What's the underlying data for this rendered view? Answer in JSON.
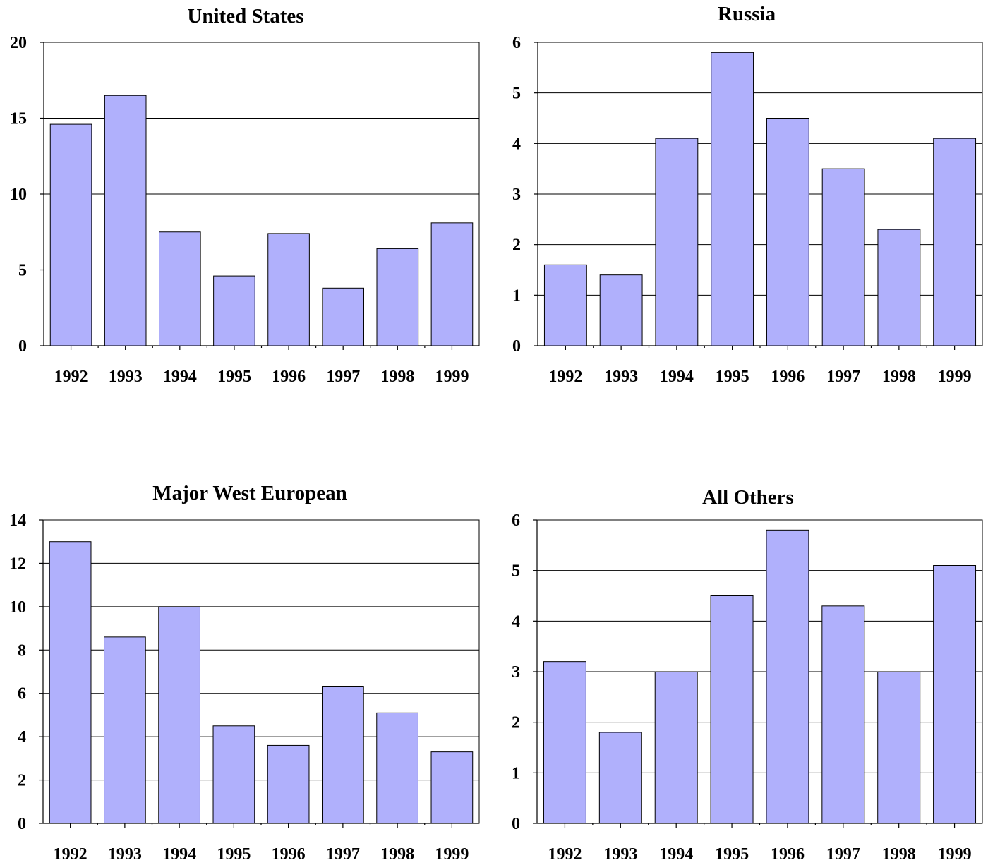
{
  "colors": {
    "bar_fill": "#b0b0fc",
    "line": "#000000",
    "background": "#ffffff"
  },
  "chart_data": [
    {
      "type": "bar",
      "title": "United States",
      "xlabel": "",
      "ylabel": "",
      "categories": [
        "1992",
        "1993",
        "1994",
        "1995",
        "1996",
        "1997",
        "1998",
        "1999"
      ],
      "values": [
        14.6,
        16.5,
        7.5,
        4.6,
        7.4,
        3.8,
        6.4,
        8.1
      ],
      "ylim": [
        0,
        20
      ],
      "yticks": [
        0,
        5,
        10,
        15,
        20
      ],
      "grid": true,
      "legend": "none"
    },
    {
      "type": "bar",
      "title": "Russia",
      "xlabel": "",
      "ylabel": "",
      "categories": [
        "1992",
        "1993",
        "1994",
        "1995",
        "1996",
        "1997",
        "1998",
        "1999"
      ],
      "values": [
        1.6,
        1.4,
        4.1,
        5.8,
        4.5,
        3.5,
        2.3,
        4.1
      ],
      "ylim": [
        0,
        6
      ],
      "yticks": [
        0,
        1,
        2,
        3,
        4,
        5,
        6
      ],
      "grid": true,
      "legend": "none"
    },
    {
      "type": "bar",
      "title": "Major West European",
      "xlabel": "",
      "ylabel": "",
      "categories": [
        "1992",
        "1993",
        "1994",
        "1995",
        "1996",
        "1997",
        "1998",
        "1999"
      ],
      "values": [
        13.0,
        8.6,
        10.0,
        4.5,
        3.6,
        6.3,
        5.1,
        3.3
      ],
      "ylim": [
        0,
        14
      ],
      "yticks": [
        0,
        2,
        4,
        6,
        8,
        10,
        12,
        14
      ],
      "grid": true,
      "legend": "none"
    },
    {
      "type": "bar",
      "title": "All Others",
      "xlabel": "",
      "ylabel": "",
      "categories": [
        "1992",
        "1993",
        "1994",
        "1995",
        "1996",
        "1997",
        "1998",
        "1999"
      ],
      "values": [
        3.2,
        1.8,
        3.0,
        4.5,
        5.8,
        4.3,
        3.0,
        5.1
      ],
      "ylim": [
        0,
        6
      ],
      "yticks": [
        0,
        1,
        2,
        3,
        4,
        5,
        6
      ],
      "grid": true,
      "legend": "none"
    }
  ]
}
